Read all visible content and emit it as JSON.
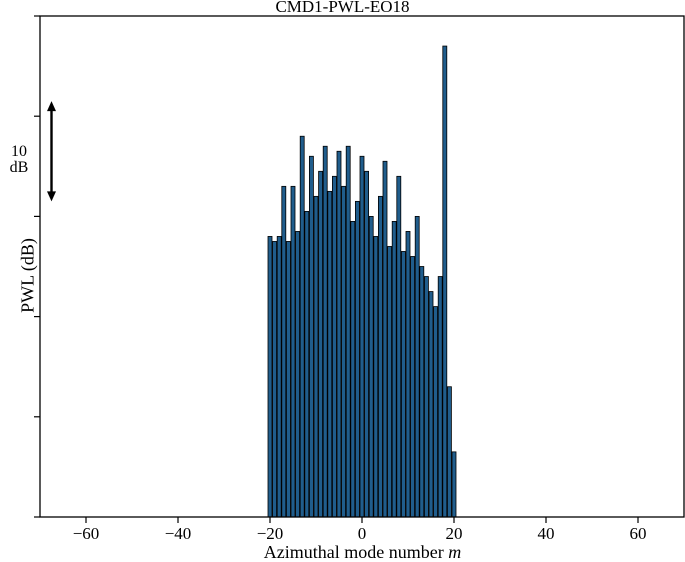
{
  "figure": {
    "title": "CMD1-PWL-EO18",
    "xlabel_text": "Azimuthal mode number ",
    "xlabel_italic": "m",
    "ylabel": "PWL (dB)",
    "scale_label": "10 dB"
  },
  "chart_data": {
    "type": "bar",
    "title": "CMD1-PWL-EO18",
    "xlabel": "Azimuthal mode number m",
    "ylabel": "PWL (dB)",
    "x": [
      -20,
      -19,
      -18,
      -17,
      -16,
      -15,
      -14,
      -13,
      -12,
      -11,
      -10,
      -9,
      -8,
      -7,
      -6,
      -5,
      -4,
      -3,
      -2,
      -1,
      0,
      1,
      2,
      3,
      4,
      5,
      6,
      7,
      8,
      9,
      10,
      11,
      12,
      13,
      14,
      15,
      16,
      17,
      18,
      19,
      20
    ],
    "values": [
      28.0,
      27.5,
      28.0,
      33.0,
      27.5,
      33.0,
      28.5,
      38.0,
      30.5,
      36.0,
      32.0,
      34.5,
      37.0,
      32.5,
      34.0,
      36.5,
      33.0,
      37.0,
      29.5,
      31.5,
      36.0,
      34.5,
      30.0,
      28.0,
      32.0,
      35.5,
      27.0,
      29.5,
      34.0,
      26.5,
      28.5,
      26.0,
      30.0,
      25.0,
      24.0,
      22.5,
      21.0,
      24.0,
      47.0,
      13.0,
      6.5
    ],
    "xlim": [
      -70,
      70
    ],
    "ylim": [
      0,
      50
    ],
    "xticks": [
      -60,
      -40,
      -20,
      0,
      20,
      40,
      60
    ],
    "xtick_labels": [
      "−60",
      "−40",
      "−20",
      "0",
      "20",
      "40",
      "60"
    ],
    "yticks": [
      0,
      10,
      20,
      30,
      40,
      50
    ],
    "grid": false,
    "legend": null,
    "bar_color": "#205d8c",
    "bar_edge_color": "#000000",
    "axis_color": "#000000",
    "scale_annotation": {
      "label": "10 dB",
      "span_db": 10,
      "x_data": -67.5,
      "from_db": 31.5,
      "to_db": 41.5
    }
  }
}
